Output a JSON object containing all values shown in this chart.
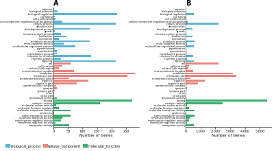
{
  "title_A": "A",
  "title_B": "B",
  "categories": [
    "behavior",
    "biological adhesion",
    "biological regulation",
    "cell killing",
    "cell proliferation",
    "cellular component organisation or biogenesis",
    "cellular process",
    "detoxification",
    "developmental process",
    "growth",
    "immune system process",
    "localization",
    "locomotion",
    "metabolic process",
    "multi-organism process",
    "multicellular organismal process",
    "pigmentation",
    "reproduction",
    "reproductive process",
    "response to stimulus",
    "rhythmic process",
    "signaling",
    "cell",
    "cell junction",
    "extracellular region",
    "macromolecular complex",
    "membrane",
    "membrane part",
    "membrane-enclosed lumen",
    "organelle",
    "organelle part",
    "supramolecular complex",
    "synapse",
    "synapse part",
    "virion",
    "virion part",
    "antioxidant activity",
    "binding",
    "catalytic activity",
    "molecular carrier activity",
    "molecular function regulator",
    "molecular transducer activity",
    "protein tag",
    "signal transducer activity",
    "structural molecule activity",
    "transcription regulator activity",
    "translation regulator activity",
    "transporter activity"
  ],
  "values_A": [
    2,
    15,
    220,
    5,
    8,
    30,
    215,
    2,
    125,
    5,
    25,
    45,
    20,
    125,
    35,
    75,
    5,
    12,
    12,
    130,
    25,
    215,
    60,
    30,
    20,
    70,
    280,
    255,
    55,
    120,
    80,
    10,
    12,
    5,
    2,
    2,
    12,
    270,
    160,
    10,
    20,
    60,
    2,
    60,
    30,
    25,
    8,
    55
  ],
  "values_B": [
    2,
    18,
    520,
    5,
    10,
    120,
    2200,
    5,
    430,
    8,
    50,
    430,
    40,
    600,
    80,
    550,
    8,
    20,
    20,
    480,
    80,
    550,
    2200,
    200,
    150,
    500,
    3200,
    3400,
    300,
    1300,
    800,
    50,
    60,
    20,
    5,
    5,
    20,
    5500,
    2500,
    100,
    200,
    600,
    5,
    600,
    250,
    200,
    60,
    550
  ],
  "color_assignment": [
    "bp",
    "bp",
    "bp",
    "bp",
    "bp",
    "bp",
    "bp",
    "bp",
    "bp",
    "bp",
    "bp",
    "bp",
    "bp",
    "bp",
    "bp",
    "bp",
    "bp",
    "bp",
    "bp",
    "bp",
    "bp",
    "bp",
    "cc",
    "cc",
    "cc",
    "cc",
    "cc",
    "cc",
    "cc",
    "cc",
    "cc",
    "cc",
    "cc",
    "cc",
    "cc",
    "cc",
    "mf",
    "mf",
    "mf",
    "mf",
    "mf",
    "mf",
    "mf",
    "mf",
    "mf",
    "mf",
    "mf",
    "mf"
  ],
  "bp_color": "#5ab4d0",
  "cc_color": "#e8837a",
  "mf_color": "#3aab6a",
  "xlabel": "Number of Genes",
  "legend_labels": [
    "biological_process",
    "cellular_component",
    "molecular_function"
  ],
  "fig_bg": "#ffffff",
  "bar_height": 0.75,
  "title_fontsize": 7,
  "label_fontsize": 2.5,
  "xlabel_fontsize": 4,
  "tick_fontsize": 3.5,
  "legend_fontsize": 3.5
}
